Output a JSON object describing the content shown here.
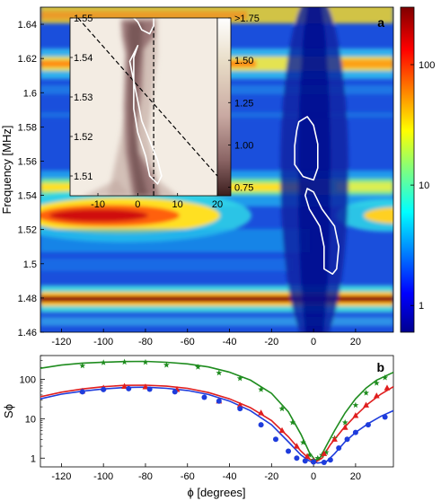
{
  "chart_data": [
    {
      "panel": "a",
      "type": "heatmap",
      "panel_label": "a",
      "xlabel": "",
      "ylabel": "Frequency [MHz]",
      "xlim": [
        -130,
        38
      ],
      "ylim": [
        1.46,
        1.65
      ],
      "x_ticks": [
        -120,
        -100,
        -80,
        -60,
        -40,
        -20,
        0,
        20
      ],
      "y_ticks": [
        1.46,
        1.48,
        1.5,
        1.52,
        1.54,
        1.56,
        1.58,
        1.6,
        1.62,
        1.64
      ],
      "y_tick_labels": [
        "1.46",
        "1.48",
        "1.5",
        "1.52",
        "1.54",
        "1.56",
        "1.58",
        "1.6",
        "1.62",
        "1.64"
      ],
      "colorscale": "jet",
      "color_scale": "log",
      "colorbar": {
        "range": [
          0.6,
          300
        ],
        "ticks": [
          1,
          10,
          100
        ],
        "tick_labels": [
          "1",
          "10",
          "100"
        ]
      },
      "resonance_bands": [
        {
          "freq": 1.645,
          "strength": 0.7,
          "note": "yellow band at top"
        },
        {
          "freq": 1.621,
          "strength": 0.85
        },
        {
          "freq": 1.547,
          "strength": 0.7
        },
        {
          "freq": 1.524,
          "strength": 0.95,
          "note": "broad strong band"
        },
        {
          "freq": 1.478,
          "strength": 1.0,
          "note": "sharp intense band"
        }
      ],
      "contours": [
        {
          "level": 0.8,
          "points": [
            [
              -7,
              1.583
            ],
            [
              -3,
              1.586
            ],
            [
              0,
              1.581
            ],
            [
              2,
              1.57
            ],
            [
              2,
              1.556
            ],
            [
              0,
              1.549
            ],
            [
              -5,
              1.551
            ],
            [
              -9,
              1.558
            ],
            [
              -9,
              1.569
            ],
            [
              -8,
              1.578
            ]
          ]
        },
        {
          "level": 0.8,
          "points": [
            [
              -3,
              1.544
            ],
            [
              0,
              1.542
            ],
            [
              4,
              1.532
            ],
            [
              10,
              1.522
            ],
            [
              12,
              1.51
            ],
            [
              11,
              1.497
            ],
            [
              9,
              1.494
            ],
            [
              5,
              1.497
            ],
            [
              5,
              1.51
            ],
            [
              3,
              1.522
            ],
            [
              -2,
              1.532
            ],
            [
              -4,
              1.54
            ]
          ]
        }
      ],
      "inset": {
        "type": "heatmap",
        "xlim": [
          -17,
          20
        ],
        "ylim": [
          1.505,
          1.55
        ],
        "x_ticks": [
          -10,
          0,
          10,
          20
        ],
        "y_ticks": [
          1.51,
          1.52,
          1.53,
          1.54,
          1.55
        ],
        "y_tick_labels": [
          "1.51",
          "1.52",
          "1.53",
          "1.54",
          "1.55"
        ],
        "colorscale": "pink",
        "colorbar": {
          "range": [
            0.7,
            1.75
          ],
          "ticks": [
            0.75,
            1.0,
            1.25,
            1.5,
            1.75
          ],
          "tick_labels": [
            "0.75",
            "1.00",
            "1.25",
            "1.50",
            ">1.75"
          ]
        },
        "dashed_lines": [
          {
            "points": [
              [
                -15,
                1.55
              ],
              [
                20,
                1.51
              ]
            ]
          },
          {
            "points": [
              [
                4,
                1.505
              ],
              [
                4,
                1.55
              ]
            ]
          }
        ],
        "contours": [
          {
            "level": 0.85,
            "points": [
              [
                -1,
                1.55
              ],
              [
                0,
                1.549
              ],
              [
                1,
                1.547
              ],
              [
                3,
                1.546
              ],
              [
                4,
                1.548
              ],
              [
                4,
                1.55
              ]
            ]
          },
          {
            "level": 0.85,
            "points": [
              [
                0,
                1.543
              ],
              [
                -2,
                1.539
              ],
              [
                -1,
                1.534
              ],
              [
                0,
                1.529
              ],
              [
                1,
                1.524
              ],
              [
                3,
                1.519
              ],
              [
                5,
                1.514
              ],
              [
                6,
                1.51
              ],
              [
                5,
                1.508
              ],
              [
                3,
                1.51
              ],
              [
                2,
                1.515
              ],
              [
                0,
                1.521
              ],
              [
                -1,
                1.527
              ],
              [
                -1,
                1.534
              ],
              [
                -1,
                1.54
              ]
            ]
          }
        ]
      }
    },
    {
      "panel": "b",
      "type": "scatter",
      "panel_label": "b",
      "xlabel": "ϕ [degrees]",
      "ylabel": "Sϕ",
      "xlim": [
        -130,
        38
      ],
      "ylim": [
        0.6,
        400
      ],
      "y_scale": "log",
      "x_ticks": [
        -120,
        -100,
        -80,
        -60,
        -40,
        -20,
        0,
        20
      ],
      "y_ticks": [
        1,
        10,
        100
      ],
      "y_tick_labels": [
        "1",
        "10",
        "100"
      ],
      "series": [
        {
          "color": "#1e8c1e",
          "marker": "star",
          "points": [
            [
              -110,
              220
            ],
            [
              -100,
              265
            ],
            [
              -90,
              275
            ],
            [
              -80,
              270
            ],
            [
              -70,
              230
            ],
            [
              -55,
              205
            ],
            [
              -45,
              145
            ],
            [
              -35,
              105
            ],
            [
              -25,
              55
            ],
            [
              -15,
              18
            ],
            [
              -10,
              8
            ],
            [
              -5,
              2.5
            ],
            [
              -2,
              1.2
            ],
            [
              0,
              0.9
            ],
            [
              2,
              1.0
            ],
            [
              4,
              1.2
            ],
            [
              6,
              1.4
            ],
            [
              10,
              3.2
            ],
            [
              15,
              8
            ],
            [
              20,
              22
            ],
            [
              25,
              45
            ],
            [
              30,
              80
            ],
            [
              34,
              110
            ]
          ],
          "curve": [
            [
              -130,
              190
            ],
            [
              -120,
              230
            ],
            [
              -110,
              258
            ],
            [
              -100,
              272
            ],
            [
              -90,
              282
            ],
            [
              -80,
              284
            ],
            [
              -70,
              270
            ],
            [
              -60,
              245
            ],
            [
              -50,
              205
            ],
            [
              -40,
              152
            ],
            [
              -30,
              95
            ],
            [
              -20,
              44
            ],
            [
              -12,
              15
            ],
            [
              -6,
              4
            ],
            [
              -2,
              1.4
            ],
            [
              1,
              0.85
            ],
            [
              3,
              1.0
            ],
            [
              6,
              2.0
            ],
            [
              10,
              5
            ],
            [
              15,
              14
            ],
            [
              20,
              32
            ],
            [
              25,
              60
            ],
            [
              30,
              95
            ],
            [
              38,
              150
            ]
          ]
        },
        {
          "color": "#e01e1e",
          "marker": "triangle",
          "points": [
            [
              -110,
              50
            ],
            [
              -100,
              60
            ],
            [
              -90,
              66
            ],
            [
              -80,
              64
            ],
            [
              -65,
              55
            ],
            [
              -45,
              28
            ],
            [
              -35,
              22
            ],
            [
              -25,
              14
            ],
            [
              -15,
              5
            ],
            [
              -8,
              2
            ],
            [
              -3,
              1.1
            ],
            [
              0,
              0.85
            ],
            [
              5,
              1.3
            ],
            [
              10,
              3
            ],
            [
              15,
              6
            ],
            [
              20,
              12
            ],
            [
              25,
              22
            ],
            [
              30,
              38
            ],
            [
              35,
              60
            ]
          ],
          "curve": [
            [
              -130,
              36
            ],
            [
              -120,
              47
            ],
            [
              -110,
              57
            ],
            [
              -100,
              65
            ],
            [
              -90,
              70
            ],
            [
              -80,
              71
            ],
            [
              -70,
              67
            ],
            [
              -60,
              59
            ],
            [
              -50,
              46
            ],
            [
              -40,
              32
            ],
            [
              -30,
              19
            ],
            [
              -20,
              9
            ],
            [
              -12,
              3.5
            ],
            [
              -6,
              1.5
            ],
            [
              -2,
              0.95
            ],
            [
              1,
              0.8
            ],
            [
              4,
              1.0
            ],
            [
              8,
              2.2
            ],
            [
              14,
              5.5
            ],
            [
              20,
              12
            ],
            [
              26,
              24
            ],
            [
              32,
              42
            ],
            [
              38,
              65
            ]
          ]
        },
        {
          "color": "#1e3cdc",
          "marker": "circle",
          "points": [
            [
              -110,
              48
            ],
            [
              -100,
              55
            ],
            [
              -88,
              58
            ],
            [
              -78,
              56
            ],
            [
              -66,
              48
            ],
            [
              -52,
              35
            ],
            [
              -45,
              28
            ],
            [
              -35,
              18
            ],
            [
              -25,
              7
            ],
            [
              -18,
              3
            ],
            [
              -12,
              1.5
            ],
            [
              -8,
              1.0
            ],
            [
              -4,
              0.85
            ],
            [
              0,
              0.8
            ],
            [
              5,
              0.78
            ],
            [
              8,
              0.9
            ],
            [
              12,
              1.8
            ],
            [
              16,
              3
            ],
            [
              20,
              4.5
            ],
            [
              26,
              7
            ],
            [
              34,
              11
            ]
          ],
          "curve": [
            [
              -130,
              32
            ],
            [
              -120,
              42
            ],
            [
              -110,
              50
            ],
            [
              -100,
              57
            ],
            [
              -90,
              62
            ],
            [
              -80,
              63
            ],
            [
              -70,
              59
            ],
            [
              -60,
              52
            ],
            [
              -50,
              41
            ],
            [
              -40,
              28
            ],
            [
              -30,
              16
            ],
            [
              -20,
              7
            ],
            [
              -12,
              2.6
            ],
            [
              -6,
              1.2
            ],
            [
              -2,
              0.85
            ],
            [
              2,
              0.75
            ],
            [
              6,
              0.8
            ],
            [
              10,
              1.3
            ],
            [
              15,
              2.6
            ],
            [
              20,
              4.5
            ],
            [
              26,
              7.5
            ],
            [
              32,
              11.5
            ],
            [
              38,
              16
            ]
          ]
        }
      ]
    }
  ]
}
